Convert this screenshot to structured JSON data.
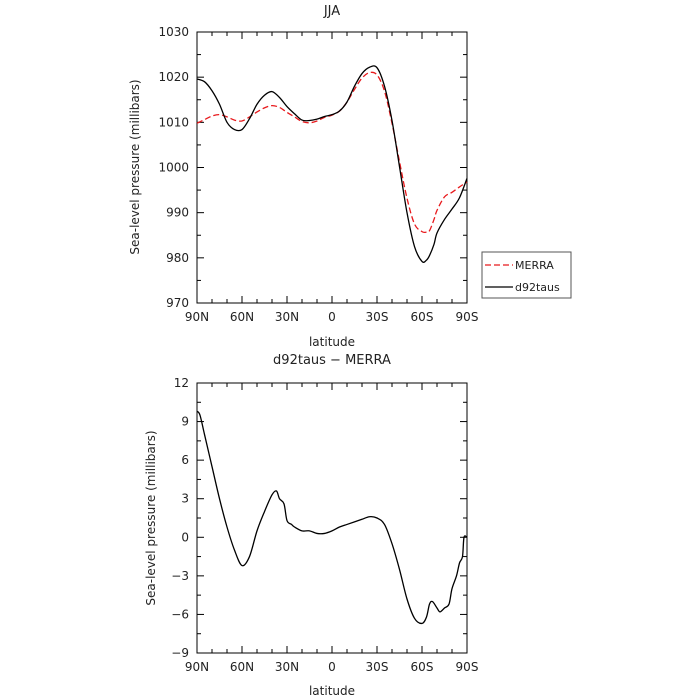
{
  "chart_data": [
    {
      "type": "line",
      "title": "JJA",
      "xlabel": "latitude",
      "ylabel": "Sea-level pressure (millibars)",
      "xlim": [
        90,
        -90
      ],
      "ylim": [
        970,
        1030
      ],
      "x_ticks": [
        90,
        60,
        30,
        0,
        -30,
        -60,
        -90
      ],
      "x_tick_labels": [
        "90N",
        "60N",
        "30N",
        "0",
        "30S",
        "60S",
        "90S"
      ],
      "y_ticks": [
        970,
        980,
        990,
        1000,
        1010,
        1020,
        1030
      ],
      "y_tick_labels": [
        "970",
        "980",
        "990",
        "1000",
        "1010",
        "1020",
        "1030"
      ],
      "grid": false,
      "legend_position": "right",
      "series": [
        {
          "name": "MERRA",
          "color": "#e8191c",
          "dash": "dashed",
          "x": [
            90,
            85,
            80,
            75,
            70,
            65,
            60,
            55,
            50,
            45,
            40,
            35,
            30,
            25,
            20,
            15,
            10,
            5,
            0,
            -5,
            -10,
            -15,
            -20,
            -25,
            -30,
            -35,
            -40,
            -45,
            -50,
            -55,
            -60,
            -63,
            -65,
            -68,
            -70,
            -75,
            -80,
            -85,
            -90
          ],
          "values": [
            1009.8,
            1010.6,
            1011.4,
            1011.7,
            1011.2,
            1010.5,
            1010.3,
            1011.2,
            1012.3,
            1013.2,
            1013.7,
            1013.3,
            1012.2,
            1011.2,
            1010.2,
            1009.9,
            1010.3,
            1011.1,
            1011.6,
            1012.5,
            1014.5,
            1017.3,
            1019.8,
            1021.0,
            1020.5,
            1016.9,
            1009.8,
            1001.3,
            993.2,
            987.5,
            985.8,
            985.7,
            986.0,
            988.5,
            990.5,
            993.5,
            994.5,
            995.7,
            996.8
          ]
        },
        {
          "name": "d92taus",
          "color": "#000000",
          "dash": "solid",
          "x": [
            90,
            85,
            80,
            75,
            70,
            65,
            60,
            55,
            50,
            45,
            40,
            35,
            30,
            25,
            20,
            15,
            10,
            5,
            0,
            -5,
            -10,
            -15,
            -20,
            -25,
            -30,
            -35,
            -40,
            -45,
            -50,
            -55,
            -60,
            -63,
            -65,
            -68,
            -70,
            -75,
            -80,
            -85,
            -90
          ],
          "values": [
            1019.6,
            1019.0,
            1017.0,
            1014.0,
            1010.0,
            1008.4,
            1008.4,
            1010.8,
            1014.0,
            1016.0,
            1016.8,
            1015.5,
            1013.5,
            1011.9,
            1010.5,
            1010.4,
            1010.7,
            1011.3,
            1011.7,
            1012.5,
            1014.5,
            1018.0,
            1020.8,
            1022.2,
            1022.1,
            1018.0,
            1010.4,
            1000.2,
            990.0,
            982.5,
            979.2,
            979.5,
            980.5,
            983.0,
            985.5,
            988.5,
            990.8,
            993.3,
            997.6
          ]
        }
      ]
    },
    {
      "type": "line",
      "title": "d92taus − MERRA",
      "xlabel": "latitude",
      "ylabel": "Sea-level pressure (millibars)",
      "xlim": [
        90,
        -90
      ],
      "ylim": [
        -9,
        12
      ],
      "x_ticks": [
        90,
        60,
        30,
        0,
        -30,
        -60,
        -90
      ],
      "x_tick_labels": [
        "90N",
        "60N",
        "30N",
        "0",
        "30S",
        "60S",
        "90S"
      ],
      "y_ticks": [
        -9,
        -6,
        -3,
        0,
        3,
        6,
        9,
        12
      ],
      "y_tick_labels": [
        "−9",
        "−6",
        "−3",
        "0",
        "3",
        "6",
        "9",
        "12"
      ],
      "grid": false,
      "series": [
        {
          "color": "#000000",
          "dash": "solid",
          "x": [
            90,
            88,
            85,
            80,
            75,
            70,
            65,
            60,
            55,
            50,
            45,
            40,
            37,
            35,
            32,
            30,
            27,
            25,
            20,
            15,
            10,
            5,
            0,
            -5,
            -10,
            -15,
            -20,
            -25,
            -30,
            -35,
            -40,
            -45,
            -50,
            -55,
            -60,
            -63,
            -65,
            -67,
            -70,
            -72,
            -75,
            -78,
            -80,
            -83,
            -85,
            -87,
            -88,
            -90
          ],
          "values": [
            9.8,
            9.5,
            8.0,
            5.5,
            3.0,
            0.8,
            -1.0,
            -2.2,
            -1.5,
            0.5,
            2.0,
            3.3,
            3.6,
            3.0,
            2.6,
            1.3,
            1.0,
            0.8,
            0.5,
            0.5,
            0.3,
            0.3,
            0.5,
            0.8,
            1.0,
            1.2,
            1.4,
            1.6,
            1.5,
            1.0,
            -0.5,
            -2.5,
            -4.8,
            -6.3,
            -6.7,
            -6.2,
            -5.2,
            -5.0,
            -5.5,
            -5.8,
            -5.5,
            -5.2,
            -4.0,
            -3.0,
            -2.0,
            -1.5,
            0.0,
            0.0
          ]
        }
      ]
    }
  ],
  "legend": {
    "items": [
      {
        "label": "MERRA",
        "color": "#e8191c",
        "dash": "dashed"
      },
      {
        "label": "d92taus",
        "color": "#000000",
        "dash": "solid"
      }
    ]
  }
}
